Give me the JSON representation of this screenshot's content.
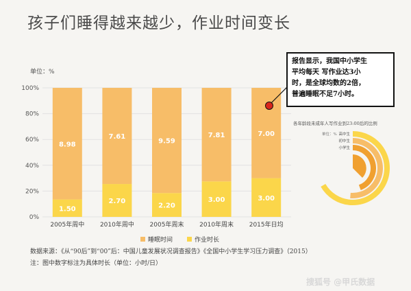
{
  "title": "孩子们睡得越来越少，作业时间变长",
  "unit_label": "单位：%",
  "callout": {
    "lines": [
      "报告显示，我国中小学生",
      "平均每天 写作业达3小",
      "时，是全球均数的2倍，",
      "普遍睡眠不足7小时。"
    ],
    "accent_color": "#d9261c"
  },
  "chart_data": {
    "type": "bar",
    "stacked": true,
    "categories": [
      "2005年周中",
      "2010年周中",
      "2005年周末",
      "2010年周末",
      "2015年日均"
    ],
    "series": [
      {
        "name": "作业时长",
        "values": [
          13.5,
          25.5,
          18.5,
          27.5,
          30.0
        ],
        "labels": [
          "1.50",
          "2.70",
          "2.20",
          "3.00",
          "3.00"
        ],
        "color": "#fbd64a"
      },
      {
        "name": "睡眠时间",
        "values": [
          86.5,
          74.5,
          81.5,
          72.5,
          70.0
        ],
        "labels": [
          "8.98",
          "7.61",
          "9.59",
          "7.81",
          "7.00"
        ],
        "color": "#f7bd68"
      }
    ],
    "ylim": [
      0,
      100
    ],
    "yticks": [
      "0%",
      "20%",
      "40%",
      "60%",
      "80%",
      "100%"
    ],
    "legend_order": [
      "睡眠时间",
      "作业时长"
    ],
    "legend_placement": "bottom"
  },
  "inset": {
    "title": "各年龄段未成年人写作业到23:00后的比例",
    "unit_label": "单位：%",
    "rows": [
      {
        "label": "高中生",
        "color": "#fbd64a"
      },
      {
        "label": "初中生",
        "color": "#f7bd68"
      },
      {
        "label": "小学生",
        "color": "#f0a030"
      }
    ]
  },
  "source": "数据来源：《从“90后”到“00”后：中国儿童发展状况调查报告》《全国中小学生学习压力调查》（2015）",
  "note": "注：图中数字标注为具体时长（单位：小时/日）",
  "watermark": "搜狐号 @甲氏数据"
}
